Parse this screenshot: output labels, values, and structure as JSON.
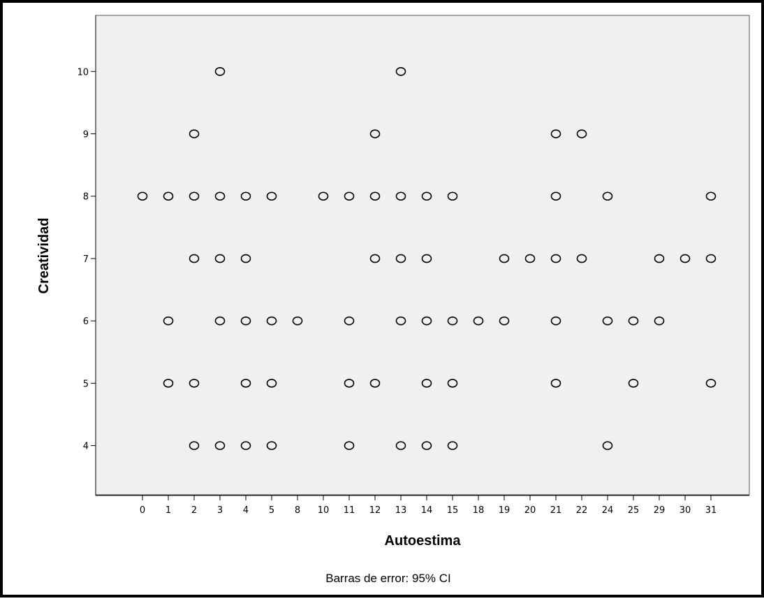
{
  "chart_data": {
    "type": "scatter",
    "xlabel": "Autoestima",
    "ylabel": "Creatividad",
    "footnote": "Barras de error: 95% CI",
    "x_categories": [
      "0",
      "1",
      "2",
      "3",
      "4",
      "5",
      "8",
      "10",
      "11",
      "12",
      "13",
      "14",
      "15",
      "18",
      "19",
      "20",
      "21",
      "22",
      "24",
      "25",
      "29",
      "30",
      "31"
    ],
    "y_ticks": [
      4,
      5,
      6,
      7,
      8,
      9,
      10
    ],
    "ylim": [
      3.2,
      10.9
    ],
    "grid": false,
    "points": [
      {
        "x": "3",
        "y": 10
      },
      {
        "x": "13",
        "y": 10
      },
      {
        "x": "2",
        "y": 9
      },
      {
        "x": "12",
        "y": 9
      },
      {
        "x": "21",
        "y": 9
      },
      {
        "x": "22",
        "y": 9
      },
      {
        "x": "0",
        "y": 8
      },
      {
        "x": "1",
        "y": 8
      },
      {
        "x": "2",
        "y": 8
      },
      {
        "x": "3",
        "y": 8
      },
      {
        "x": "4",
        "y": 8
      },
      {
        "x": "5",
        "y": 8
      },
      {
        "x": "10",
        "y": 8
      },
      {
        "x": "11",
        "y": 8
      },
      {
        "x": "12",
        "y": 8
      },
      {
        "x": "13",
        "y": 8
      },
      {
        "x": "14",
        "y": 8
      },
      {
        "x": "15",
        "y": 8
      },
      {
        "x": "21",
        "y": 8
      },
      {
        "x": "24",
        "y": 8
      },
      {
        "x": "31",
        "y": 8
      },
      {
        "x": "2",
        "y": 7
      },
      {
        "x": "3",
        "y": 7
      },
      {
        "x": "4",
        "y": 7
      },
      {
        "x": "12",
        "y": 7
      },
      {
        "x": "13",
        "y": 7
      },
      {
        "x": "14",
        "y": 7
      },
      {
        "x": "19",
        "y": 7
      },
      {
        "x": "20",
        "y": 7
      },
      {
        "x": "21",
        "y": 7
      },
      {
        "x": "22",
        "y": 7
      },
      {
        "x": "29",
        "y": 7
      },
      {
        "x": "30",
        "y": 7
      },
      {
        "x": "31",
        "y": 7
      },
      {
        "x": "1",
        "y": 6
      },
      {
        "x": "3",
        "y": 6
      },
      {
        "x": "4",
        "y": 6
      },
      {
        "x": "5",
        "y": 6
      },
      {
        "x": "8",
        "y": 6
      },
      {
        "x": "11",
        "y": 6
      },
      {
        "x": "13",
        "y": 6
      },
      {
        "x": "14",
        "y": 6
      },
      {
        "x": "15",
        "y": 6
      },
      {
        "x": "18",
        "y": 6
      },
      {
        "x": "19",
        "y": 6
      },
      {
        "x": "21",
        "y": 6
      },
      {
        "x": "24",
        "y": 6
      },
      {
        "x": "25",
        "y": 6
      },
      {
        "x": "29",
        "y": 6
      },
      {
        "x": "1",
        "y": 5
      },
      {
        "x": "2",
        "y": 5
      },
      {
        "x": "4",
        "y": 5
      },
      {
        "x": "5",
        "y": 5
      },
      {
        "x": "11",
        "y": 5
      },
      {
        "x": "12",
        "y": 5
      },
      {
        "x": "14",
        "y": 5
      },
      {
        "x": "15",
        "y": 5
      },
      {
        "x": "21",
        "y": 5
      },
      {
        "x": "25",
        "y": 5
      },
      {
        "x": "31",
        "y": 5
      },
      {
        "x": "2",
        "y": 4
      },
      {
        "x": "3",
        "y": 4
      },
      {
        "x": "4",
        "y": 4
      },
      {
        "x": "5",
        "y": 4
      },
      {
        "x": "11",
        "y": 4
      },
      {
        "x": "13",
        "y": 4
      },
      {
        "x": "14",
        "y": 4
      },
      {
        "x": "15",
        "y": 4
      },
      {
        "x": "24",
        "y": 4
      }
    ],
    "colors": {
      "plot_background": "#f0f0f0",
      "marker_stroke": "#000000",
      "frame": "#000000"
    }
  }
}
